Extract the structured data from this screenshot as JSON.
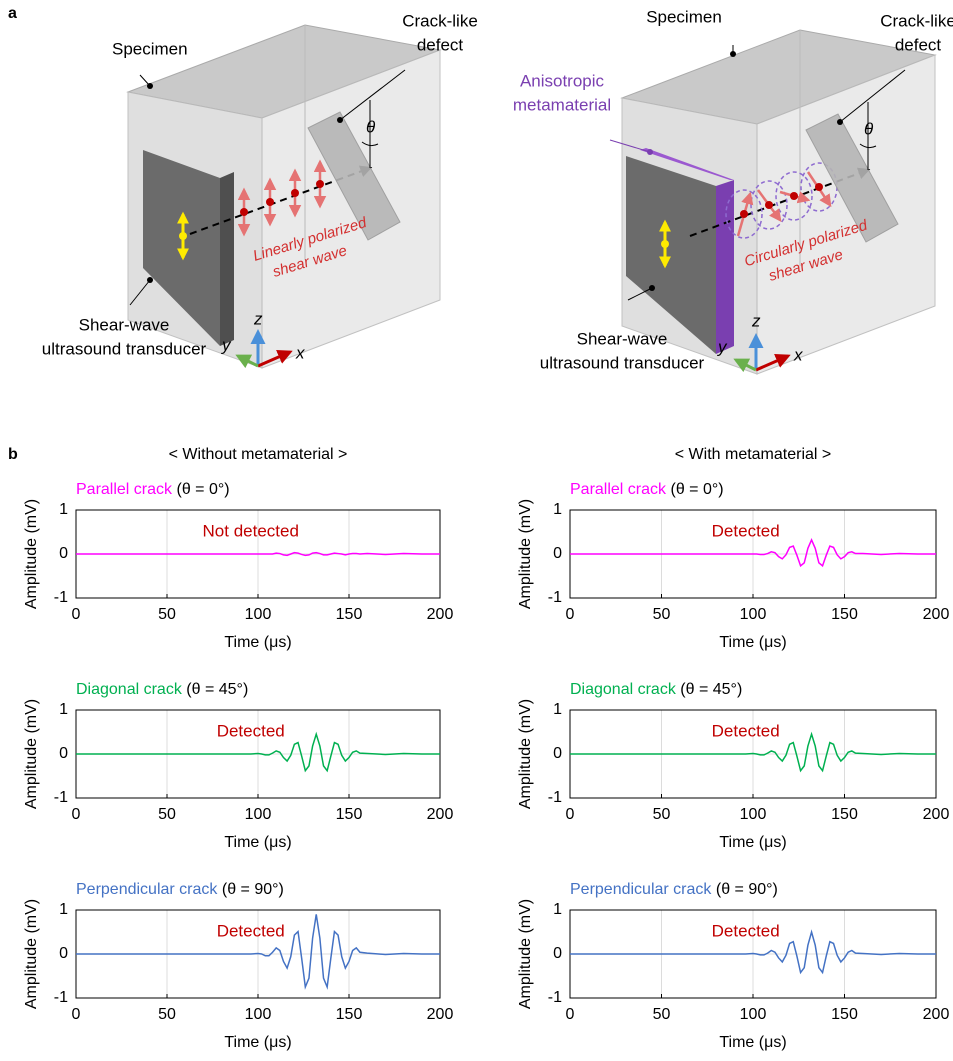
{
  "figure": {
    "panel_a": {
      "label": "a",
      "left": {
        "specimen": "Specimen",
        "defect": [
          "Crack-like",
          "defect"
        ],
        "theta": "θ",
        "wave": [
          "Linearly polarized",
          "shear wave"
        ],
        "transducer": [
          "Shear-wave",
          "ultrasound transducer"
        ],
        "axes": {
          "x": "x",
          "y": "y",
          "z": "z"
        }
      },
      "right": {
        "specimen": "Specimen",
        "defect": [
          "Crack-like",
          "defect"
        ],
        "theta": "θ",
        "metamaterial": [
          "Anisotropic",
          "metamaterial"
        ],
        "wave": [
          "Circularly polarized",
          "shear wave"
        ],
        "transducer": [
          "Shear-wave",
          "ultrasound transducer"
        ],
        "axes": {
          "x": "x",
          "y": "y",
          "z": "z"
        }
      }
    },
    "panel_b": {
      "label": "b",
      "headings": [
        "< Without metamaterial >",
        "< With metamaterial >"
      ]
    }
  },
  "chart_data": [
    {
      "type": "line",
      "title": "Parallel crack",
      "title_suffix": "(θ = 0°)",
      "title_color": "#ff00ff",
      "annotation": "Not detected",
      "annotation_color": "#c00000",
      "xlabel": "Time (μs)",
      "ylabel": "Amplitude (mV)",
      "xlim": [
        0,
        200
      ],
      "ylim": [
        -1,
        1
      ],
      "xticks": [
        0,
        50,
        100,
        150,
        200
      ],
      "yticks": [
        -1,
        0,
        1
      ],
      "grid": true,
      "color": "#ff00ff",
      "x": [
        0,
        25,
        50,
        75,
        90,
        96,
        100,
        102,
        104,
        106,
        108,
        110,
        112,
        114,
        116,
        118,
        120,
        122,
        124,
        126,
        128,
        130,
        132,
        134,
        136,
        138,
        140,
        142,
        144,
        146,
        148,
        150,
        152,
        154,
        156,
        160,
        170,
        180,
        190,
        200
      ],
      "values": [
        0,
        0,
        0,
        0,
        0,
        0,
        0,
        0,
        0,
        0,
        0,
        0.02,
        0.01,
        -0.02,
        -0.03,
        0,
        0.03,
        0.02,
        -0.01,
        -0.03,
        -0.02,
        0.02,
        0.03,
        0.01,
        -0.02,
        -0.02,
        0,
        0.02,
        0.01,
        0,
        -0.02,
        0,
        0.01,
        0.01,
        0,
        0.01,
        -0.01,
        0.01,
        0,
        0
      ]
    },
    {
      "type": "line",
      "title": "Parallel crack",
      "title_suffix": "(θ = 0°)",
      "title_color": "#ff00ff",
      "annotation": "Detected",
      "annotation_color": "#c00000",
      "xlabel": "Time (μs)",
      "ylabel": "Amplitude (mV)",
      "xlim": [
        0,
        200
      ],
      "ylim": [
        -1,
        1
      ],
      "xticks": [
        0,
        50,
        100,
        150,
        200
      ],
      "yticks": [
        -1,
        0,
        1
      ],
      "grid": true,
      "color": "#ff00ff",
      "x": [
        0,
        25,
        50,
        75,
        90,
        96,
        100,
        102,
        104,
        106,
        108,
        110,
        112,
        114,
        116,
        118,
        120,
        122,
        124,
        126,
        128,
        130,
        132,
        134,
        136,
        138,
        140,
        142,
        144,
        146,
        148,
        150,
        152,
        154,
        156,
        160,
        170,
        180,
        190,
        200
      ],
      "values": [
        0,
        0,
        0,
        0,
        0,
        0,
        0,
        0,
        -0.01,
        -0.01,
        0.01,
        0.05,
        0.03,
        -0.06,
        -0.11,
        -0.02,
        0.15,
        0.18,
        -0.03,
        -0.27,
        -0.2,
        0.13,
        0.32,
        0.13,
        -0.2,
        -0.27,
        -0.03,
        0.18,
        0.15,
        -0.02,
        -0.11,
        -0.06,
        0.03,
        0.05,
        0.01,
        0.01,
        -0.01,
        0.01,
        0,
        0
      ]
    },
    {
      "type": "line",
      "title": "Diagonal crack",
      "title_suffix": "(θ = 45°)",
      "title_color": "#00b050",
      "annotation": "Detected",
      "annotation_color": "#c00000",
      "xlabel": "Time (μs)",
      "ylabel": "Amplitude (mV)",
      "xlim": [
        0,
        200
      ],
      "ylim": [
        -1,
        1
      ],
      "xticks": [
        0,
        50,
        100,
        150,
        200
      ],
      "yticks": [
        -1,
        0,
        1
      ],
      "grid": true,
      "color": "#00b050",
      "x": [
        0,
        25,
        50,
        75,
        90,
        96,
        100,
        102,
        104,
        106,
        108,
        110,
        112,
        114,
        116,
        118,
        120,
        122,
        124,
        126,
        128,
        130,
        132,
        134,
        136,
        138,
        140,
        142,
        144,
        146,
        148,
        150,
        152,
        154,
        156,
        160,
        170,
        180,
        190,
        200
      ],
      "values": [
        0,
        0,
        0,
        0,
        0,
        0,
        0.01,
        0,
        -0.02,
        -0.02,
        0.02,
        0.07,
        0.04,
        -0.08,
        -0.16,
        -0.03,
        0.22,
        0.26,
        -0.05,
        -0.38,
        -0.27,
        0.18,
        0.45,
        0.18,
        -0.27,
        -0.38,
        -0.05,
        0.26,
        0.22,
        -0.03,
        -0.16,
        -0.08,
        0.04,
        0.07,
        0.02,
        0.01,
        -0.01,
        0.01,
        0,
        0
      ]
    },
    {
      "type": "line",
      "title": "Diagonal crack",
      "title_suffix": "(θ = 45°)",
      "title_color": "#00b050",
      "annotation": "Detected",
      "annotation_color": "#c00000",
      "xlabel": "Time (μs)",
      "ylabel": "Amplitude (mV)",
      "xlim": [
        0,
        200
      ],
      "ylim": [
        -1,
        1
      ],
      "xticks": [
        0,
        50,
        100,
        150,
        200
      ],
      "yticks": [
        -1,
        0,
        1
      ],
      "grid": true,
      "color": "#00b050",
      "x": [
        0,
        25,
        50,
        75,
        90,
        96,
        100,
        102,
        104,
        106,
        108,
        110,
        112,
        114,
        116,
        118,
        120,
        122,
        124,
        126,
        128,
        130,
        132,
        134,
        136,
        138,
        140,
        142,
        144,
        146,
        148,
        150,
        152,
        154,
        156,
        160,
        170,
        180,
        190,
        200
      ],
      "values": [
        0,
        0,
        0,
        0,
        0,
        0,
        0.01,
        0,
        -0.02,
        -0.02,
        0.02,
        0.07,
        0.04,
        -0.08,
        -0.16,
        -0.03,
        0.22,
        0.26,
        -0.05,
        -0.38,
        -0.27,
        0.18,
        0.45,
        0.18,
        -0.27,
        -0.38,
        -0.05,
        0.26,
        0.22,
        -0.03,
        -0.16,
        -0.08,
        0.04,
        0.07,
        0.02,
        0.01,
        -0.01,
        0.01,
        0,
        0
      ]
    },
    {
      "type": "line",
      "title": "Perpendicular crack",
      "title_suffix": "(θ = 90°)",
      "title_color": "#4472c4",
      "annotation": "Detected",
      "annotation_color": "#c00000",
      "xlabel": "Time (μs)",
      "ylabel": "Amplitude (mV)",
      "xlim": [
        0,
        200
      ],
      "ylim": [
        -1,
        1
      ],
      "xticks": [
        0,
        50,
        100,
        150,
        200
      ],
      "yticks": [
        -1,
        0,
        1
      ],
      "grid": true,
      "color": "#4472c4",
      "x": [
        0,
        25,
        50,
        75,
        90,
        96,
        100,
        102,
        104,
        106,
        108,
        110,
        112,
        114,
        116,
        118,
        120,
        122,
        124,
        126,
        128,
        130,
        132,
        134,
        136,
        138,
        140,
        142,
        144,
        146,
        148,
        150,
        152,
        154,
        156,
        160,
        170,
        180,
        190,
        200
      ],
      "values": [
        0,
        0,
        0,
        0,
        0,
        0,
        0.01,
        0,
        -0.04,
        -0.04,
        0.04,
        0.14,
        0.08,
        -0.17,
        -0.32,
        -0.06,
        0.43,
        0.51,
        -0.1,
        -0.75,
        -0.55,
        0.36,
        0.9,
        0.36,
        -0.55,
        -0.75,
        -0.1,
        0.51,
        0.43,
        -0.06,
        -0.32,
        -0.17,
        0.08,
        0.14,
        0.04,
        0.02,
        -0.01,
        0.01,
        0,
        0
      ]
    },
    {
      "type": "line",
      "title": "Perpendicular crack",
      "title_suffix": "(θ = 90°)",
      "title_color": "#4472c4",
      "annotation": "Detected",
      "annotation_color": "#c00000",
      "xlabel": "Time (μs)",
      "ylabel": "Amplitude (mV)",
      "xlim": [
        0,
        200
      ],
      "ylim": [
        -1,
        1
      ],
      "xticks": [
        0,
        50,
        100,
        150,
        200
      ],
      "yticks": [
        -1,
        0,
        1
      ],
      "grid": true,
      "color": "#4472c4",
      "x": [
        0,
        25,
        50,
        75,
        90,
        96,
        100,
        102,
        104,
        106,
        108,
        110,
        112,
        114,
        116,
        118,
        120,
        122,
        124,
        126,
        128,
        130,
        132,
        134,
        136,
        138,
        140,
        142,
        144,
        146,
        148,
        150,
        152,
        154,
        156,
        160,
        170,
        180,
        190,
        200
      ],
      "values": [
        0,
        0,
        0,
        0,
        0,
        0,
        0.01,
        0,
        -0.02,
        -0.02,
        0.02,
        0.08,
        0.04,
        -0.09,
        -0.18,
        -0.03,
        0.24,
        0.28,
        -0.05,
        -0.42,
        -0.31,
        0.2,
        0.5,
        0.2,
        -0.31,
        -0.42,
        -0.05,
        0.28,
        0.24,
        -0.03,
        -0.18,
        -0.09,
        0.04,
        0.08,
        0.02,
        0.01,
        -0.01,
        0.01,
        0,
        0
      ]
    }
  ]
}
